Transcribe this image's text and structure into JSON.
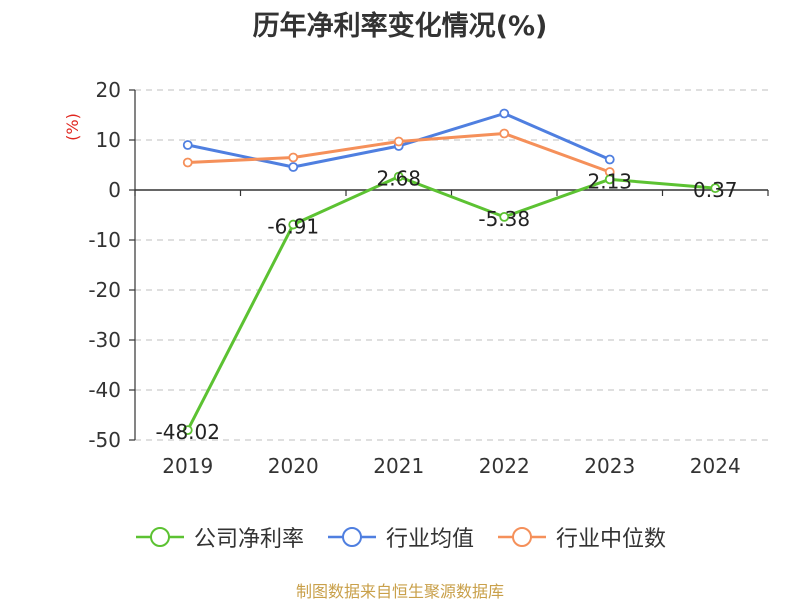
{
  "chart_data": {
    "type": "line",
    "title": "历年净利率变化情况(%)",
    "ylabel": "(%)",
    "categories": [
      "2019",
      "2020",
      "2021",
      "2022",
      "2023",
      "2024"
    ],
    "ylim": [
      -50,
      20
    ],
    "yticks": [
      20,
      10,
      0,
      -10,
      -20,
      -30,
      -40,
      -50
    ],
    "grid": true,
    "legend_position": "bottom",
    "series": [
      {
        "name": "公司净利率",
        "color": "#5cc232",
        "values": [
          -48.02,
          -6.91,
          2.68,
          -5.38,
          2.13,
          0.37
        ],
        "labels": [
          "-48.02",
          "-6.91",
          "2.68",
          "-5.38",
          "2.13",
          "0.37"
        ]
      },
      {
        "name": "行业均值",
        "color": "#4f7fe0",
        "values": [
          9.0,
          4.6,
          8.8,
          15.3,
          6.1,
          null
        ]
      },
      {
        "name": "行业中位数",
        "color": "#f5905a",
        "values": [
          5.5,
          6.5,
          9.7,
          11.3,
          3.6,
          null
        ]
      }
    ]
  },
  "source": "制图数据来自恒生聚源数据库"
}
